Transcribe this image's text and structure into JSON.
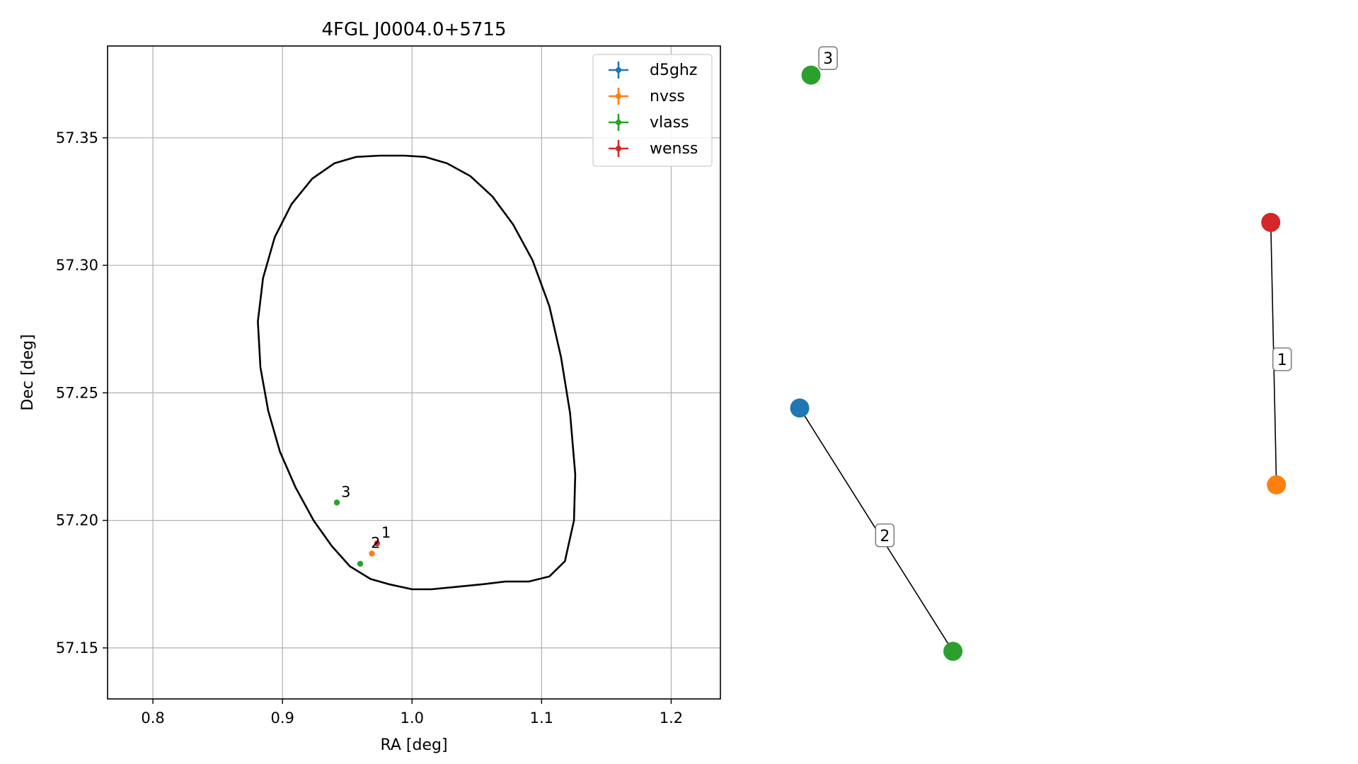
{
  "chart_data": [
    {
      "type": "scatter",
      "title": "4FGL J0004.0+5715",
      "xlabel": "RA [deg]",
      "ylabel": "Dec [deg]",
      "xlim": [
        0.765,
        1.238
      ],
      "ylim": [
        57.13,
        57.386
      ],
      "xticks": [
        0.8,
        0.9,
        1.0,
        1.1,
        1.2
      ],
      "xtick_labels": [
        "0.8",
        "0.9",
        "1.0",
        "1.1",
        "1.2"
      ],
      "yticks": [
        57.15,
        57.2,
        57.25,
        57.3,
        57.35
      ],
      "ytick_labels": [
        "57.15",
        "57.20",
        "57.25",
        "57.30",
        "57.35"
      ],
      "grid": true,
      "legend_position": "top-right",
      "ellipse": {
        "color": "#000000",
        "points": [
          [
            0.994,
            57.343
          ],
          [
            1.01,
            57.3425
          ],
          [
            1.027,
            57.34
          ],
          [
            1.045,
            57.335
          ],
          [
            1.062,
            57.327
          ],
          [
            1.078,
            57.316
          ],
          [
            1.093,
            57.302
          ],
          [
            1.106,
            57.284
          ],
          [
            1.115,
            57.264
          ],
          [
            1.122,
            57.242
          ],
          [
            1.126,
            57.218
          ],
          [
            1.125,
            57.2
          ],
          [
            1.118,
            57.184
          ],
          [
            1.106,
            57.178
          ],
          [
            1.09,
            57.176
          ],
          [
            1.072,
            57.176
          ],
          [
            1.055,
            57.175
          ],
          [
            1.035,
            57.174
          ],
          [
            1.015,
            57.173
          ],
          [
            1.0,
            57.173
          ],
          [
            0.982,
            57.175
          ],
          [
            0.968,
            57.177
          ],
          [
            0.952,
            57.182
          ],
          [
            0.938,
            57.19
          ],
          [
            0.924,
            57.2
          ],
          [
            0.91,
            57.213
          ],
          [
            0.898,
            57.227
          ],
          [
            0.889,
            57.243
          ],
          [
            0.883,
            57.26
          ],
          [
            0.881,
            57.278
          ],
          [
            0.885,
            57.295
          ],
          [
            0.894,
            57.311
          ],
          [
            0.907,
            57.324
          ],
          [
            0.923,
            57.334
          ],
          [
            0.94,
            57.34
          ],
          [
            0.957,
            57.3425
          ],
          [
            0.975,
            57.343
          ],
          [
            0.994,
            57.343
          ]
        ]
      },
      "series": [
        {
          "name": "d5ghz",
          "color": "#1f77b4",
          "points": []
        },
        {
          "name": "nvss",
          "color": "#ff7f0e",
          "points": [
            {
              "x": 0.969,
              "y": 57.187
            }
          ]
        },
        {
          "name": "vlass",
          "color": "#2ca02c",
          "points": [
            {
              "x": 0.942,
              "y": 57.207
            },
            {
              "x": 0.96,
              "y": 57.183
            }
          ]
        },
        {
          "name": "wenss",
          "color": "#d62728",
          "points": [
            {
              "x": 0.973,
              "y": 57.191
            }
          ]
        }
      ],
      "annotations": [
        {
          "text": "3",
          "x": 0.942,
          "y": 57.207
        },
        {
          "text": "1",
          "x": 0.973,
          "y": 57.191
        },
        {
          "text": "2",
          "x": 0.965,
          "y": 57.187
        }
      ]
    },
    {
      "type": "network",
      "nodes": [
        {
          "id": "d5ghz",
          "color": "#1f77b4",
          "x": 0.03,
          "y": 0.56
        },
        {
          "id": "vlass-a",
          "color": "#2ca02c",
          "x": 0.3,
          "y": 0.94
        },
        {
          "id": "vlass-b",
          "color": "#2ca02c",
          "x": 0.05,
          "y": 0.04
        },
        {
          "id": "wenss",
          "color": "#d62728",
          "x": 0.86,
          "y": 0.27
        },
        {
          "id": "nvss",
          "color": "#ff7f0e",
          "x": 0.87,
          "y": 0.68
        }
      ],
      "edges": [
        {
          "source": "wenss",
          "target": "nvss",
          "label": "1"
        },
        {
          "source": "d5ghz",
          "target": "vlass-a",
          "label": "2"
        }
      ],
      "node_labels": [
        {
          "node": "vlass-b",
          "label": "3"
        }
      ]
    }
  ]
}
